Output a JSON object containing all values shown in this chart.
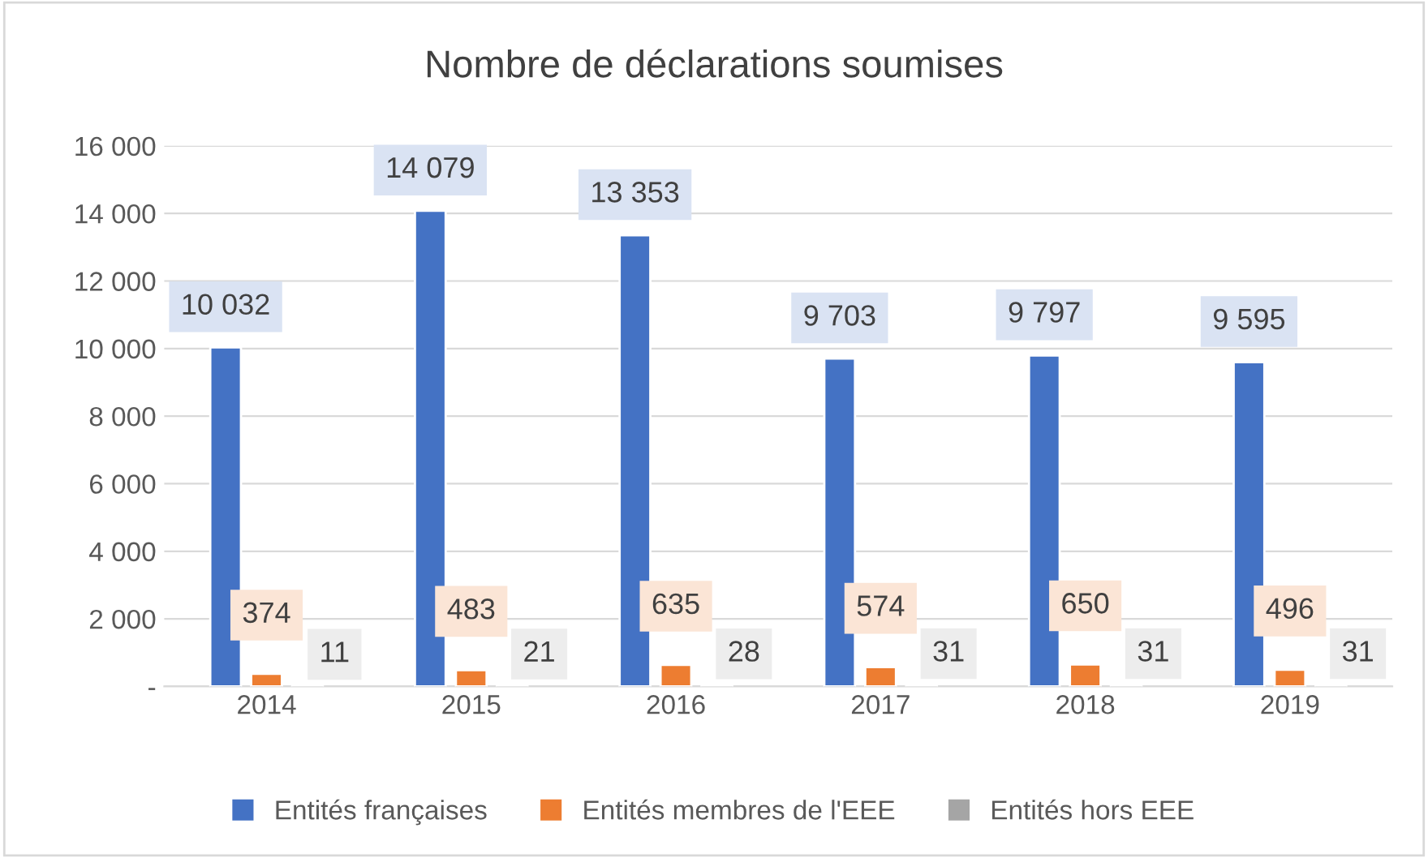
{
  "chart_data": {
    "type": "bar",
    "title": "Nombre de déclarations soumises",
    "categories": [
      "2014",
      "2015",
      "2016",
      "2017",
      "2018",
      "2019"
    ],
    "series": [
      {
        "name": "Entités françaises",
        "color": "#4472c4",
        "values": [
          10032,
          14079,
          13353,
          9703,
          9797,
          9595
        ],
        "value_labels": [
          "10 032",
          "14 079",
          "13 353",
          "9 703",
          "9 797",
          "9 595"
        ]
      },
      {
        "name": "Entités membres de l'EEE",
        "color": "#ed7d31",
        "values": [
          374,
          483,
          635,
          574,
          650,
          496
        ],
        "value_labels": [
          "374",
          "483",
          "635",
          "574",
          "650",
          "496"
        ]
      },
      {
        "name": "Entités hors EEE",
        "color": "#a5a5a5",
        "values": [
          11,
          21,
          28,
          31,
          31,
          31
        ],
        "value_labels": [
          "11",
          "21",
          "28",
          "31",
          "31",
          "31"
        ]
      }
    ],
    "ylim": [
      0,
      16000
    ],
    "yticks": [
      {
        "value": 0,
        "label": "-"
      },
      {
        "value": 2000,
        "label": "2 000"
      },
      {
        "value": 4000,
        "label": "4 000"
      },
      {
        "value": 6000,
        "label": "6 000"
      },
      {
        "value": 8000,
        "label": "8 000"
      },
      {
        "value": 10000,
        "label": "10 000"
      },
      {
        "value": 12000,
        "label": "12 000"
      },
      {
        "value": 14000,
        "label": "14 000"
      },
      {
        "value": 16000,
        "label": "16 000"
      }
    ],
    "grid": "y",
    "legend": "bottom"
  }
}
